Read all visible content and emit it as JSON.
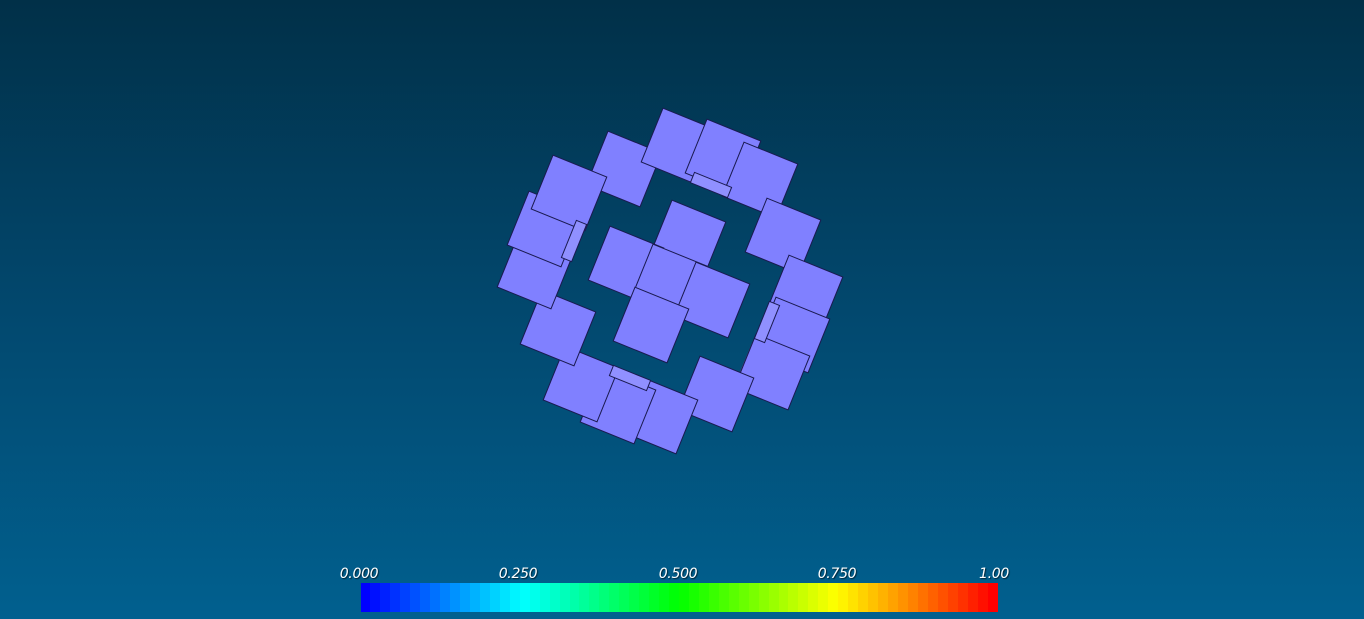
{
  "scene": {
    "object": "mirror-segment-array",
    "element_color": "#8080ff",
    "edge_color": "#1a1a50",
    "frame_color": "#1c0c20",
    "background_top": "#013048",
    "background_bottom": "#01608f"
  },
  "colorbar": {
    "ticks": [
      {
        "label": "0.000"
      },
      {
        "label": "0.250"
      },
      {
        "label": "0.500"
      },
      {
        "label": "0.750"
      },
      {
        "label": "1.00"
      }
    ],
    "bands": 64,
    "colormap": "blue-cyan-green-yellow-red"
  }
}
